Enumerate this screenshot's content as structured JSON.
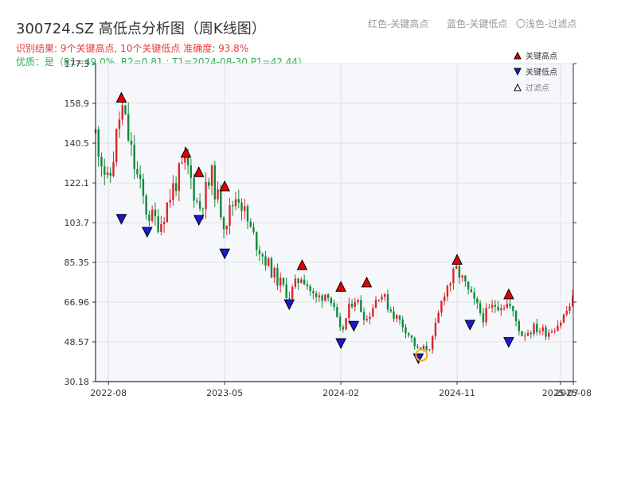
{
  "title": "300724.SZ 高低点分析图（周K线图）",
  "legend_top": {
    "red": "红色-关键高点",
    "blue": "蓝色-关键低点",
    "light": "〇浅色-过滤点"
  },
  "info": {
    "line1": "识别结果: 9个关键高点, 10个关键低点  准确度: 93.8%",
    "line2": "优质：是（R1=49.0%, R2=0.81 ; T1=2024-08-30 P1=42.44）"
  },
  "colors": {
    "up": "#d9262c",
    "down": "#0f8a3a",
    "high_marker": "#e60000",
    "low_marker": "#1a1ad6",
    "filtered": "#f5a623",
    "plot_bg": "#f5f7fa",
    "grid": "#dde1e6"
  },
  "chart_data": {
    "type": "candlestick",
    "y_ticks": [
      "177.3",
      "158.9",
      "140.5",
      "122.1",
      "103.7",
      "85.35",
      "66.96",
      "48.57",
      "30.18"
    ],
    "x_ticks": [
      "2022-08",
      "2023-05",
      "2024-02",
      "2024-11",
      "2025-07",
      "2025-08"
    ],
    "ylim": [
      30.18,
      177.3
    ],
    "x_range": [
      "2022-07",
      "2025-08"
    ],
    "x_tick_dates": [
      "2022-08",
      "2023-05",
      "2024-02",
      "2024-11",
      "2025-07",
      "2025-08"
    ],
    "legend": {
      "high": "关键高点",
      "low": "关键低点",
      "filtered": "过滤点",
      "placement": "top-right"
    },
    "grid": true,
    "anchors": [
      [
        "2022-07",
        145
      ],
      [
        "2022-08",
        120
      ],
      [
        "2022-09",
        158
      ],
      [
        "2022-10",
        130
      ],
      [
        "2022-11",
        108
      ],
      [
        "2022-12",
        103
      ],
      [
        "2023-01",
        120
      ],
      [
        "2023-02",
        132
      ],
      [
        "2023-03",
        110
      ],
      [
        "2023-04",
        125
      ],
      [
        "2023-05",
        103
      ],
      [
        "2023-06",
        118
      ],
      [
        "2023-07",
        100
      ],
      [
        "2023-08",
        88
      ],
      [
        "2023-09",
        78
      ],
      [
        "2023-10",
        70
      ],
      [
        "2023-11",
        80
      ],
      [
        "2023-12",
        68
      ],
      [
        "2024-01",
        72
      ],
      [
        "2024-02",
        52
      ],
      [
        "2024-03",
        70
      ],
      [
        "2024-04",
        59
      ],
      [
        "2024-05",
        72
      ],
      [
        "2024-06",
        62
      ],
      [
        "2024-07",
        55
      ],
      [
        "2024-08",
        44
      ],
      [
        "2024-09",
        47
      ],
      [
        "2024-10",
        72
      ],
      [
        "2024-11",
        82
      ],
      [
        "2024-12",
        70
      ],
      [
        "2025-01",
        60
      ],
      [
        "2025-02",
        66
      ],
      [
        "2025-03",
        66
      ],
      [
        "2025-04",
        52
      ],
      [
        "2025-05",
        55
      ],
      [
        "2025-06",
        53
      ],
      [
        "2025-07",
        58
      ],
      [
        "2025-08",
        68
      ]
    ],
    "key_highs": [
      {
        "date": "2022-09",
        "price": 158.0
      },
      {
        "date": "2023-02",
        "price": 132.5
      },
      {
        "date": "2023-03",
        "price": 123.5
      },
      {
        "date": "2023-05",
        "price": 117.0
      },
      {
        "date": "2023-11",
        "price": 80.5
      },
      {
        "date": "2024-02",
        "price": 70.5
      },
      {
        "date": "2024-04",
        "price": 72.5
      },
      {
        "date": "2024-11",
        "price": 83.0
      },
      {
        "date": "2025-03",
        "price": 67.0
      }
    ],
    "key_lows": [
      {
        "date": "2022-09",
        "price": 109.0
      },
      {
        "date": "2022-11",
        "price": 103.0
      },
      {
        "date": "2023-03",
        "price": 108.5
      },
      {
        "date": "2023-05",
        "price": 93.0
      },
      {
        "date": "2023-10",
        "price": 69.5
      },
      {
        "date": "2024-02",
        "price": 51.5
      },
      {
        "date": "2024-03",
        "price": 59.5
      },
      {
        "date": "2024-08",
        "price": 44.5
      },
      {
        "date": "2024-12",
        "price": 60.0
      },
      {
        "date": "2025-03",
        "price": 52.0
      }
    ],
    "filtered_points": [
      {
        "date": "2024-08",
        "price": 42.44
      }
    ]
  }
}
